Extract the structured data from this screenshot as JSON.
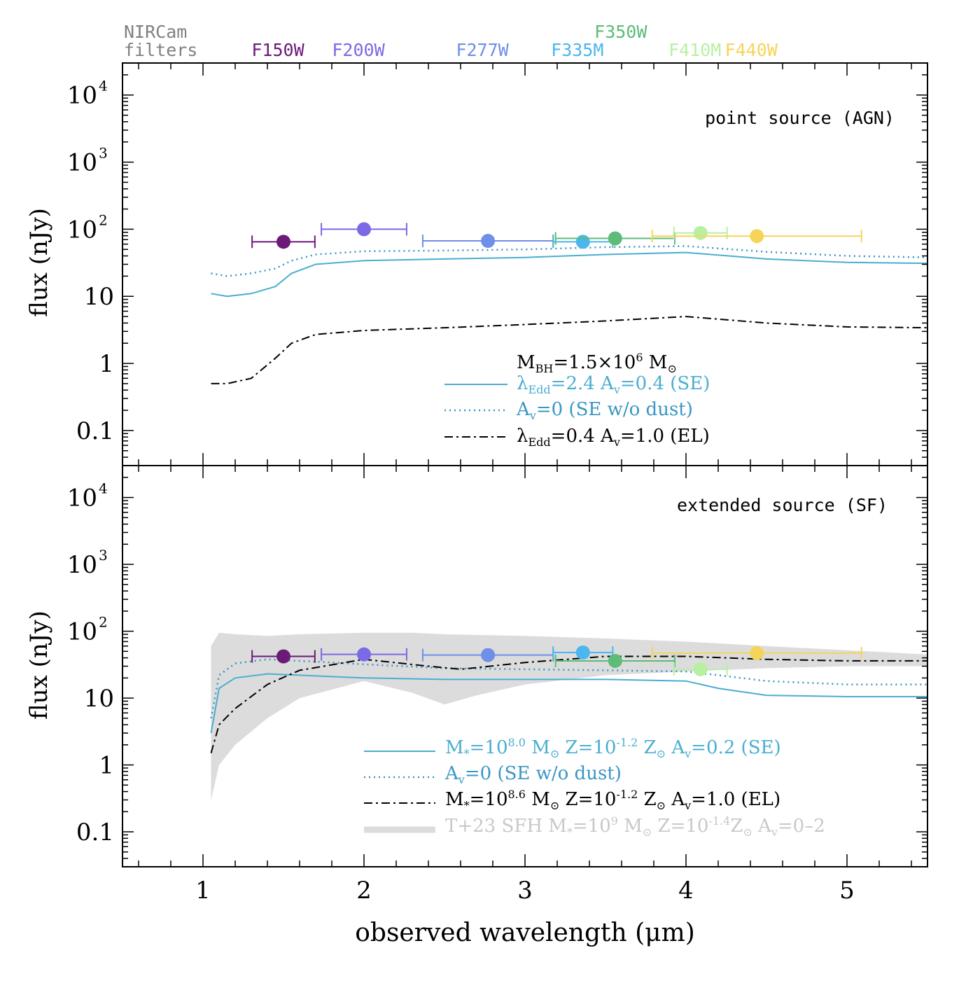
{
  "filters": {
    "header_line1": "NIRCam",
    "header_line2": "filters",
    "items": [
      {
        "name": "F150W",
        "pivot": 1.5,
        "half_width": 0.195,
        "color": "#6b1a78",
        "agn_flux": 65,
        "sf_flux": 42
      },
      {
        "name": "F200W",
        "pivot": 2.0,
        "half_width": 0.265,
        "color": "#7b6ae6",
        "agn_flux": 100,
        "sf_flux": 45
      },
      {
        "name": "F277W",
        "pivot": 2.77,
        "half_width": 0.405,
        "color": "#6f8fe8",
        "agn_flux": 67,
        "sf_flux": 44
      },
      {
        "name": "F335M",
        "pivot": 3.36,
        "half_width": 0.185,
        "color": "#4cb6ee",
        "agn_flux": 65,
        "sf_flux": 48
      },
      {
        "name": "F350W",
        "pivot": 3.56,
        "half_width": 0.37,
        "color": "#5cbc78",
        "agn_flux": 73,
        "sf_flux": 36
      },
      {
        "name": "F410M",
        "pivot": 4.09,
        "half_width": 0.165,
        "color": "#b8f0a2",
        "agn_flux": 88,
        "sf_flux": 27
      },
      {
        "name": "F440W",
        "pivot": 4.44,
        "half_width": 0.65,
        "color": "#f6d45a",
        "agn_flux": 79,
        "sf_flux": 47
      }
    ]
  },
  "axes": {
    "xlabel": "observed wavelength (μm)",
    "ylabel": "flux (nJy)",
    "xlim": [
      0.5,
      5.5
    ],
    "ylim": [
      0.03,
      30000
    ],
    "xticks": [
      "1",
      "2",
      "3",
      "4",
      "5"
    ],
    "yticks_plain": [
      "0.1",
      "1",
      "10"
    ],
    "yticks_pow": [
      "2",
      "3",
      "4"
    ]
  },
  "top_panel": {
    "title": "point source (AGN)",
    "legend": {
      "header": "M_BH=1.5×10^6 M_⊙",
      "lines": [
        "λ_Edd=2.4 A_v=0.4 (SE)",
        "A_v=0 (SE w/o dust)",
        "λ_Edd=0.4 A_v=1.0 (EL)"
      ]
    }
  },
  "bottom_panel": {
    "title": "extended source (SF)",
    "legend": {
      "lines": [
        "M_*=10^8.0 M_⊙ Z=10^-1.2 Z_⊙ A_v=0.2 (SE)",
        "A_v=0 (SE w/o dust)",
        "M_*=10^8.6 M_⊙ Z=10^-1.2 Z_⊙ A_v=1.0 (EL)",
        "T+23 SFH M_*=10^9 M_⊙ Z=10^-1.4Z_⊙ A_v=0–2"
      ]
    }
  },
  "colors": {
    "se": "#4aaed0",
    "se_dotted": "#3a96c4",
    "el": "#000000",
    "band": "#dcdcdc",
    "band_text": "#c8c8c8",
    "header_gray": "#808080",
    "F350W_label": "#5cbc78"
  },
  "chart_data": {
    "type": "line",
    "title": "",
    "xlabel": "observed wavelength (μm)",
    "ylabel": "flux (nJy)",
    "xlim": [
      0.5,
      5.5
    ],
    "ylim": [
      0.03,
      30000
    ],
    "yscale": "log",
    "panels": [
      {
        "name": "point source (AGN)",
        "series": [
          {
            "name": "λ_Edd=2.4 A_v=0.4 (SE)",
            "style": "solid",
            "x": [
              1.05,
              1.15,
              1.3,
              1.45,
              1.55,
              1.7,
              2.0,
              2.5,
              3.0,
              3.5,
              4.0,
              4.5,
              5.0,
              5.5
            ],
            "y": [
              11,
              10,
              11,
              14,
              22,
              30,
              34,
              36,
              38,
              42,
              45,
              36,
              32,
              31
            ]
          },
          {
            "name": "A_v=0 (SE w/o dust)",
            "style": "dotted",
            "x": [
              1.05,
              1.15,
              1.3,
              1.45,
              1.55,
              1.7,
              2.0,
              2.5,
              3.0,
              3.5,
              4.0,
              4.5,
              5.0,
              5.5
            ],
            "y": [
              22,
              20,
              22,
              26,
              34,
              42,
              47,
              48,
              50,
              54,
              56,
              46,
              40,
              38
            ]
          },
          {
            "name": "λ_Edd=0.4 A_v=1.0 (EL)",
            "style": "dashdot",
            "x": [
              1.05,
              1.15,
              1.3,
              1.45,
              1.55,
              1.7,
              2.0,
              2.5,
              3.0,
              3.5,
              4.0,
              4.5,
              5.0,
              5.5
            ],
            "y": [
              0.5,
              0.5,
              0.6,
              1.2,
              2.0,
              2.7,
              3.1,
              3.4,
              3.8,
              4.3,
              5.0,
              4.0,
              3.5,
              3.4
            ]
          }
        ]
      },
      {
        "name": "extended source (SF)",
        "series": [
          {
            "name": "M_*=10^8.0 Z=10^-1.2 A_v=0.2 (SE)",
            "style": "solid",
            "x": [
              1.05,
              1.1,
              1.2,
              1.4,
              1.6,
              2.0,
              2.5,
              3.0,
              3.5,
              4.0,
              4.2,
              4.5,
              5.0,
              5.5
            ],
            "y": [
              3,
              14,
              20,
              23,
              22,
              20,
              19,
              19,
              19,
              18,
              14,
              11,
              10.5,
              10.5
            ]
          },
          {
            "name": "A_v=0 (SE w/o dust)",
            "style": "dotted",
            "x": [
              1.05,
              1.1,
              1.2,
              1.4,
              1.6,
              2.0,
              2.5,
              3.0,
              3.5,
              4.0,
              4.2,
              4.5,
              5.0,
              5.5
            ],
            "y": [
              5,
              22,
              33,
              38,
              36,
              32,
              28,
              27,
              26,
              25,
              22,
              18,
              16,
              16
            ]
          },
          {
            "name": "M_*=10^8.6 Z=10^-1.2 A_v=1.0 (EL)",
            "style": "dashdot",
            "x": [
              1.05,
              1.1,
              1.2,
              1.4,
              1.6,
              2.0,
              2.4,
              2.6,
              3.0,
              3.5,
              4.0,
              4.5,
              5.0,
              5.5
            ],
            "y": [
              1.5,
              4,
              7,
              16,
              26,
              38,
              30,
              27,
              34,
              42,
              42,
              38,
              36,
              36
            ]
          }
        ],
        "band": {
          "name": "T+23 SFH M_*=10^9 Z=10^-1.4 A_v=0–2",
          "x": [
            1.05,
            1.1,
            1.2,
            1.4,
            1.6,
            2.0,
            2.3,
            2.5,
            2.7,
            3.0,
            3.5,
            4.0,
            4.5,
            5.0,
            5.5
          ],
          "ylow": [
            0.3,
            1,
            2,
            5,
            10,
            18,
            12,
            8,
            11,
            16,
            22,
            25,
            28,
            30,
            30
          ],
          "yhigh": [
            60,
            95,
            90,
            85,
            90,
            95,
            95,
            90,
            88,
            85,
            78,
            70,
            60,
            52,
            45
          ]
        }
      }
    ]
  }
}
